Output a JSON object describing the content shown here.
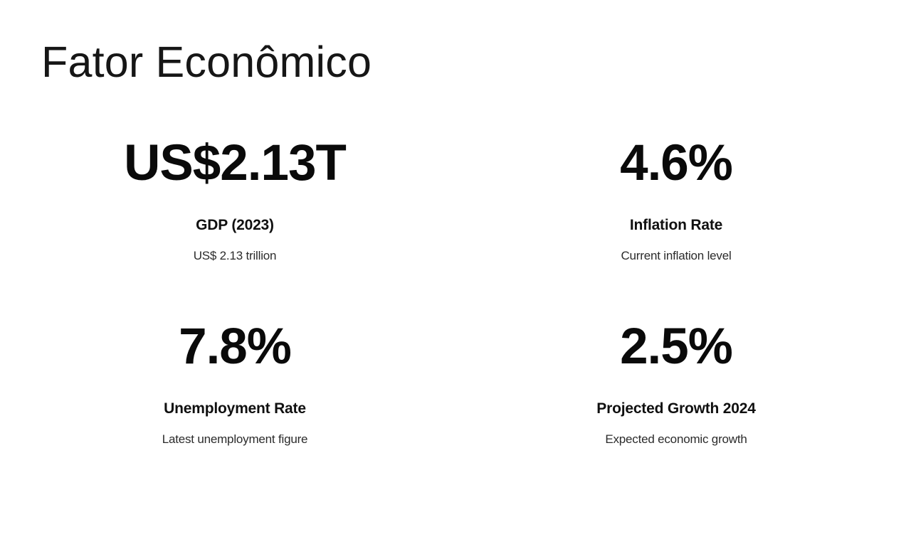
{
  "slide": {
    "title": "Fator Econômico",
    "stats": [
      {
        "value": "US$2.13T",
        "label": "GDP (2023)",
        "description": "US$ 2.13 trillion"
      },
      {
        "value": "4.6%",
        "label": "Inflation Rate",
        "description": "Current inflation level"
      },
      {
        "value": "7.8%",
        "label": "Unemployment Rate",
        "description": "Latest unemployment figure"
      },
      {
        "value": "2.5%",
        "label": "Projected Growth 2024",
        "description": "Expected economic growth"
      }
    ],
    "colors": {
      "background": "#ffffff",
      "title_text": "#161616",
      "value_text": "#0a0a0a",
      "label_text": "#101010",
      "description_text": "#2b2b2b"
    }
  }
}
